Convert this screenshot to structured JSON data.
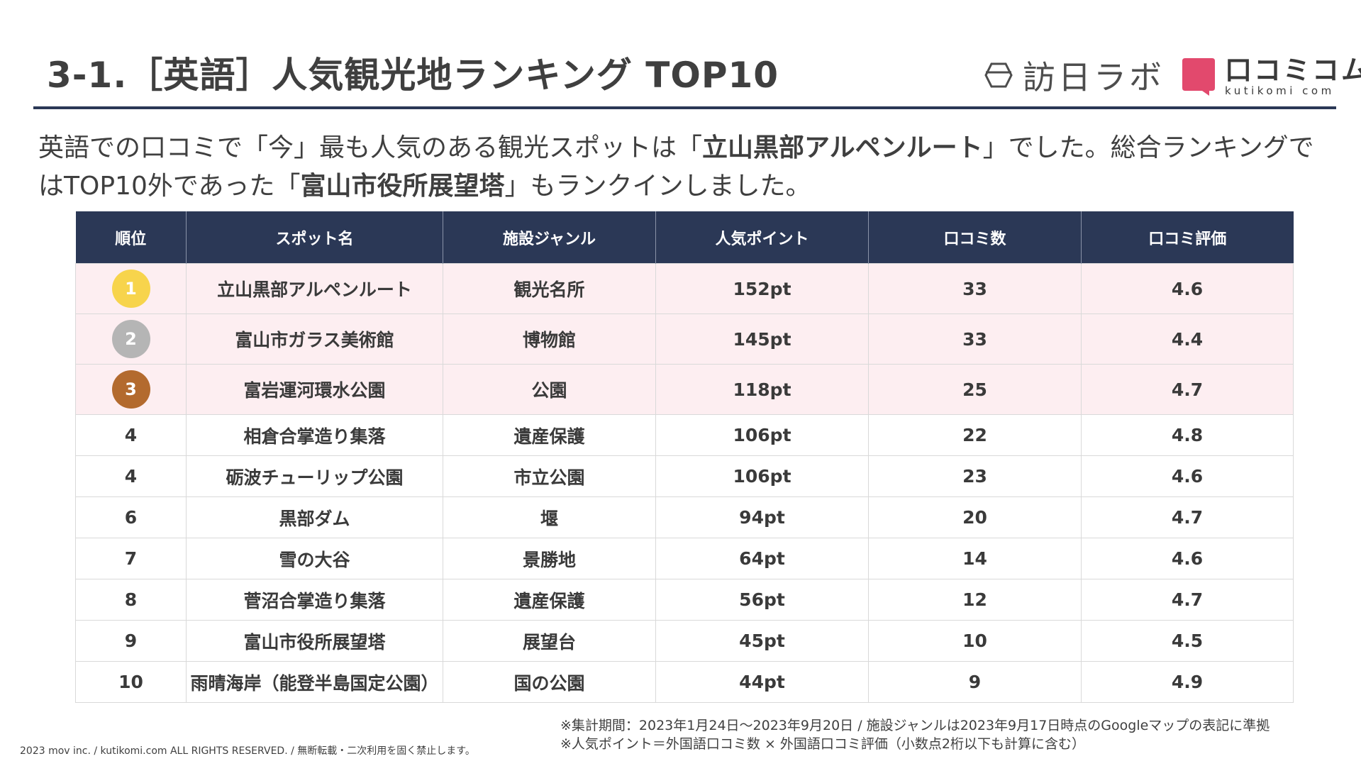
{
  "header": {
    "title": "3-1.［英語］人気観光地ランキング TOP10",
    "logo_houjin": "訪日ラボ",
    "logo_kutikomi_name": "口コミコム",
    "logo_kutikomi_sub": "kutikomi com",
    "logo_houjin_icon": "hexagon-outline-icon",
    "logo_kutikomi_icon": "speech-bubble-icon"
  },
  "lead": {
    "part1": "英語での口コミで「今」最も人気のある観光スポットは「",
    "highlight1": "立山黒部アルペンルート",
    "part2": "」でした。総合ランキングではTOP10外であった「",
    "highlight2": "富山市役所展望塔",
    "part3": "」もランクインしました。"
  },
  "table": {
    "headers": [
      "順位",
      "スポット名",
      "施設ジャンル",
      "人気ポイント",
      "口コミ数",
      "口コミ評価"
    ],
    "rows": [
      {
        "rank": "1",
        "spot": "立山黒部アルペンルート",
        "genre": "観光名所",
        "points": "152pt",
        "reviews": "33",
        "rating": "4.6"
      },
      {
        "rank": "2",
        "spot": "富山市ガラス美術館",
        "genre": "博物館",
        "points": "145pt",
        "reviews": "33",
        "rating": "4.4"
      },
      {
        "rank": "3",
        "spot": "富岩運河環水公園",
        "genre": "公園",
        "points": "118pt",
        "reviews": "25",
        "rating": "4.7"
      },
      {
        "rank": "4",
        "spot": "相倉合掌造り集落",
        "genre": "遺産保護",
        "points": "106pt",
        "reviews": "22",
        "rating": "4.8"
      },
      {
        "rank": "4",
        "spot": "砺波チューリップ公園",
        "genre": "市立公園",
        "points": "106pt",
        "reviews": "23",
        "rating": "4.6"
      },
      {
        "rank": "6",
        "spot": "黒部ダム",
        "genre": "堰",
        "points": "94pt",
        "reviews": "20",
        "rating": "4.7"
      },
      {
        "rank": "7",
        "spot": "雪の大谷",
        "genre": "景勝地",
        "points": "64pt",
        "reviews": "14",
        "rating": "4.6"
      },
      {
        "rank": "8",
        "spot": "菅沼合掌造り集落",
        "genre": "遺産保護",
        "points": "56pt",
        "reviews": "12",
        "rating": "4.7"
      },
      {
        "rank": "9",
        "spot": "富山市役所展望塔",
        "genre": "展望台",
        "points": "45pt",
        "reviews": "10",
        "rating": "4.5"
      },
      {
        "rank": "10",
        "spot": "雨晴海岸（能登半島国定公園）",
        "genre": "国の公園",
        "points": "44pt",
        "reviews": "9",
        "rating": "4.9"
      }
    ]
  },
  "medal_colors": {
    "gold": "#f7d44c",
    "silver": "#b5b5b5",
    "bronze": "#b36a2e"
  },
  "colors": {
    "navy": "#2b3856",
    "highlight_row": "#fdeef1",
    "kutikomi_pink": "#e2496d"
  },
  "footnotes": {
    "line1": "※集計期間：2023年1月24日〜2023年9月20日 / 施設ジャンルは2023年9月17日時点のGoogleマップの表記に準拠",
    "line2": "※人気ポイント＝外国語口コミ数 × 外国語口コミ評価（小数点2桁以下も計算に含む）"
  },
  "copyright": "2023 mov inc. / kutikomi.com ALL RIGHTS RESERVED. / 無断転載・二次利用を固く禁止します。"
}
